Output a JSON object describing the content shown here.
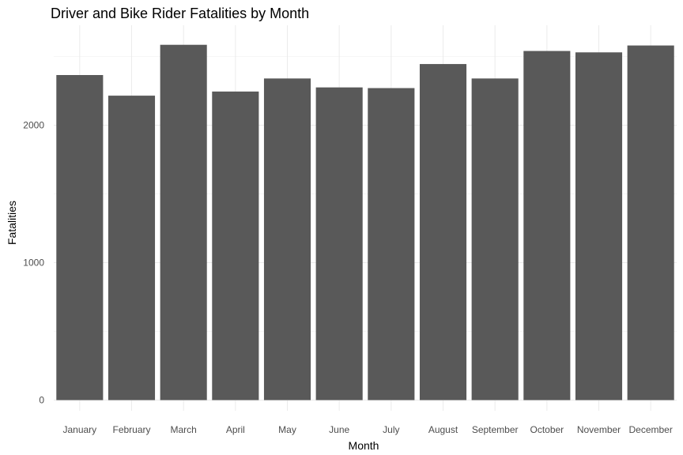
{
  "chart_data": {
    "type": "bar",
    "title": "Driver and Bike Rider Fatalities by Month",
    "xlabel": "Month",
    "ylabel": "Fatalities",
    "categories": [
      "January",
      "February",
      "March",
      "April",
      "May",
      "June",
      "July",
      "August",
      "September",
      "October",
      "November",
      "December"
    ],
    "values": [
      2365,
      2215,
      2585,
      2245,
      2340,
      2275,
      2270,
      2445,
      2340,
      2540,
      2530,
      2580
    ],
    "ylim": [
      0,
      2720
    ],
    "yticks": [
      0,
      1000,
      2000
    ],
    "grid": true,
    "bar_color": "#595959"
  }
}
